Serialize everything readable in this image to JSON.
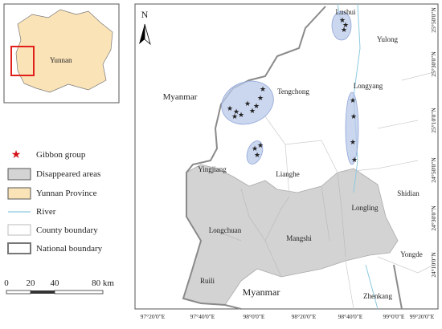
{
  "inset": {
    "label": "Yunnan"
  },
  "legend": [
    "Gibbon group",
    "Disappeared areas",
    "Yunnan Province",
    "River",
    "County boundary",
    "National boundary"
  ],
  "scale_bar": {
    "labels": [
      "0",
      "20",
      "40",
      "80 km"
    ]
  },
  "map": {
    "north": "N",
    "places": [
      "Lushui",
      "Yulong",
      "Myanmar",
      "Tengchong",
      "Longyang",
      "Yingjiang",
      "Lianghe",
      "Shidian",
      "Longling",
      "Longchuan",
      "Mangshi",
      "Ruili",
      "Myanmar",
      "Yongde",
      "Zhenkang"
    ],
    "longitudes": [
      "97°20'0\"E",
      "97°40'0\"E",
      "98°0'0\"E",
      "98°20'0\"E",
      "98°40'0\"E",
      "99°0'0\"E",
      "99°20'0\"E"
    ],
    "latitudes": [
      "25°50'0\"N",
      "25°30'0\"N",
      "25°10'0\"N",
      "24°50'0\"N",
      "24°30'0\"N",
      "24°10'0\"N"
    ]
  }
}
